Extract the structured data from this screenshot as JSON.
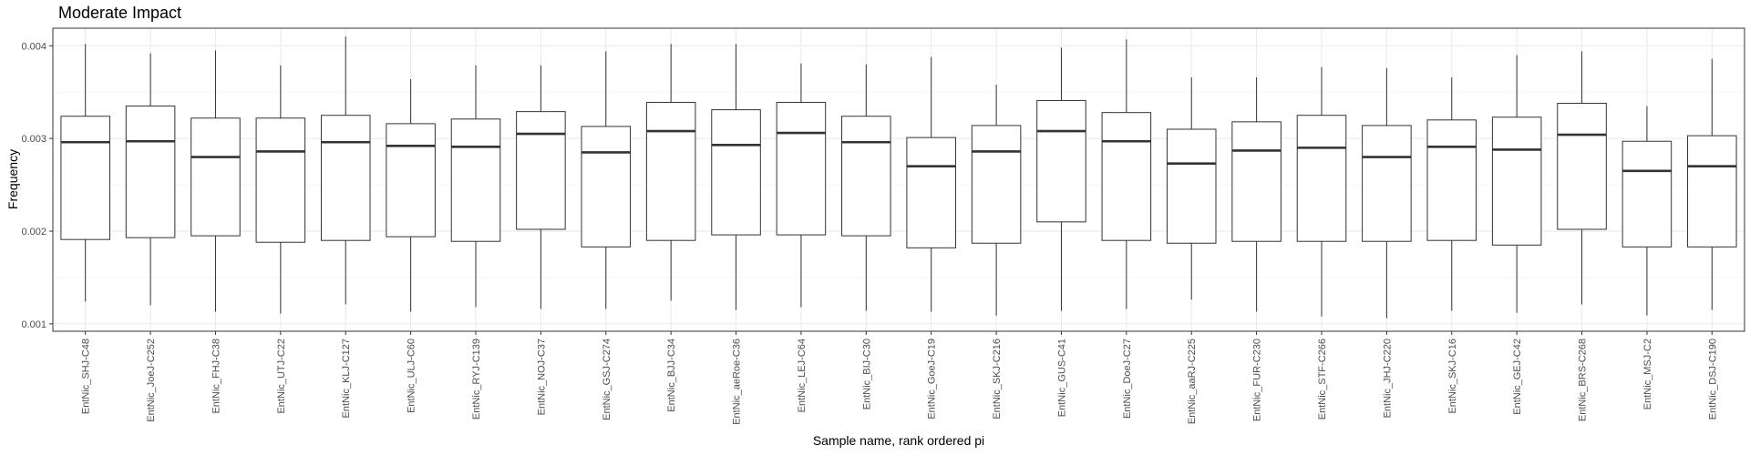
{
  "chart_data": {
    "type": "boxplot",
    "title": "Moderate Impact",
    "xlabel": "Sample name, rank ordered pi",
    "ylabel": "Frequency",
    "ylim": [
      0.00092,
      0.00419
    ],
    "yticks": [
      0.001,
      0.002,
      0.003,
      0.004
    ],
    "ytick_labels": [
      "0.001",
      "0.002",
      "0.003",
      "0.004"
    ],
    "grid": true,
    "theme": "bw",
    "categories": [
      "EntNic_SHJ-C48",
      "EntNic_JoeJ-C252",
      "EntNic_FHJ-C38",
      "EntNic_UTJ-C22",
      "EntNic_KLJ-C127",
      "EntNic_ULJ-C60",
      "EntNic_RYJ-C139",
      "EntNic_NOJ-C37",
      "EntNic_GSJ-C274",
      "EntNic_BJJ-C34",
      "EntNic_aeRoe-C36",
      "EntNic_LEJ-C64",
      "EntNic_BIJ-C30",
      "EntNic_GoeJ-C19",
      "EntNic_SKJ-C216",
      "EntNic_GUS-C41",
      "EntNic_DoeJ-C27",
      "EntNic_aaRJ-C225",
      "EntNic_FUR-C230",
      "EntNic_STF-C266",
      "EntNic_JHJ-C220",
      "EntNic_SKJ-C16",
      "EntNic_GEJ-C42",
      "EntNic_BRS-C268",
      "EntNic_MSJ-C2",
      "EntNic_DSJ-C190"
    ],
    "boxes": [
      {
        "min": 0.00124,
        "q1": 0.00191,
        "median": 0.00296,
        "q3": 0.00324,
        "max": 0.00402
      },
      {
        "min": 0.0012,
        "q1": 0.00193,
        "median": 0.00297,
        "q3": 0.00335,
        "max": 0.00392
      },
      {
        "min": 0.00113,
        "q1": 0.00195,
        "median": 0.0028,
        "q3": 0.00322,
        "max": 0.00395
      },
      {
        "min": 0.00111,
        "q1": 0.00188,
        "median": 0.00286,
        "q3": 0.00322,
        "max": 0.00379
      },
      {
        "min": 0.00121,
        "q1": 0.0019,
        "median": 0.00296,
        "q3": 0.00325,
        "max": 0.0041
      },
      {
        "min": 0.00113,
        "q1": 0.00194,
        "median": 0.00292,
        "q3": 0.00316,
        "max": 0.00364
      },
      {
        "min": 0.00118,
        "q1": 0.00189,
        "median": 0.00291,
        "q3": 0.00321,
        "max": 0.00379
      },
      {
        "min": 0.00116,
        "q1": 0.00202,
        "median": 0.00305,
        "q3": 0.00329,
        "max": 0.00379
      },
      {
        "min": 0.00116,
        "q1": 0.00183,
        "median": 0.00285,
        "q3": 0.00313,
        "max": 0.00394
      },
      {
        "min": 0.00125,
        "q1": 0.0019,
        "median": 0.00308,
        "q3": 0.00339,
        "max": 0.00402
      },
      {
        "min": 0.00115,
        "q1": 0.00196,
        "median": 0.00293,
        "q3": 0.00331,
        "max": 0.00402
      },
      {
        "min": 0.00118,
        "q1": 0.00196,
        "median": 0.00306,
        "q3": 0.00339,
        "max": 0.00381
      },
      {
        "min": 0.00114,
        "q1": 0.00195,
        "median": 0.00296,
        "q3": 0.00324,
        "max": 0.0038
      },
      {
        "min": 0.00113,
        "q1": 0.00182,
        "median": 0.0027,
        "q3": 0.00301,
        "max": 0.00388
      },
      {
        "min": 0.00109,
        "q1": 0.00187,
        "median": 0.00286,
        "q3": 0.00314,
        "max": 0.00358
      },
      {
        "min": 0.00114,
        "q1": 0.0021,
        "median": 0.00308,
        "q3": 0.00341,
        "max": 0.00398
      },
      {
        "min": 0.00116,
        "q1": 0.0019,
        "median": 0.00297,
        "q3": 0.00328,
        "max": 0.00407
      },
      {
        "min": 0.00126,
        "q1": 0.00187,
        "median": 0.00273,
        "q3": 0.0031,
        "max": 0.00366
      },
      {
        "min": 0.00113,
        "q1": 0.00189,
        "median": 0.00287,
        "q3": 0.00318,
        "max": 0.00366
      },
      {
        "min": 0.00108,
        "q1": 0.00189,
        "median": 0.0029,
        "q3": 0.00325,
        "max": 0.00377
      },
      {
        "min": 0.00106,
        "q1": 0.00189,
        "median": 0.0028,
        "q3": 0.00314,
        "max": 0.00376
      },
      {
        "min": 0.00114,
        "q1": 0.0019,
        "median": 0.00291,
        "q3": 0.0032,
        "max": 0.00366
      },
      {
        "min": 0.00112,
        "q1": 0.00185,
        "median": 0.00288,
        "q3": 0.00323,
        "max": 0.0039
      },
      {
        "min": 0.00121,
        "q1": 0.00202,
        "median": 0.00304,
        "q3": 0.00338,
        "max": 0.00394
      },
      {
        "min": 0.00109,
        "q1": 0.00183,
        "median": 0.00265,
        "q3": 0.00297,
        "max": 0.00335
      },
      {
        "min": 0.00115,
        "q1": 0.00183,
        "median": 0.0027,
        "q3": 0.00303,
        "max": 0.00386
      }
    ]
  }
}
